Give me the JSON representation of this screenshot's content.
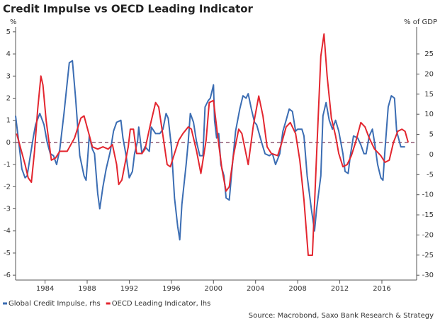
{
  "chart_data": {
    "type": "line",
    "title": "Credit Impulse vs OECD Leading Indicator",
    "y_label": "%",
    "y2_label": "% of GDP",
    "source": "Source: Macrobond, Saxo Bank Research & Strategy",
    "xlim": [
      1981.2,
      2019.3
    ],
    "xticks": [
      1984,
      1988,
      1992,
      1996,
      2000,
      2004,
      2008,
      2012,
      2016
    ],
    "ylim": [
      -6.22,
      5.22
    ],
    "yticks": [
      5,
      4,
      3,
      2,
      1,
      0,
      -1,
      -2,
      -3,
      -4,
      -5,
      -6
    ],
    "y2lim": [
      -31.2,
      31.7
    ],
    "y2ticks": [
      25,
      20,
      15,
      10,
      5,
      0,
      -5,
      -10,
      -15,
      -20,
      -25,
      -30
    ],
    "zero_line": true,
    "legend": "bottom-left",
    "series": [
      {
        "name": "Global Credit Impulse, rhs",
        "color": "#3b6db3",
        "axis": "y2",
        "x": [
          1981.2,
          1981.5,
          1981.8,
          1982.1,
          1982.3,
          1982.6,
          1982.9,
          1983.1,
          1983.5,
          1983.9,
          1984.2,
          1984.5,
          1984.8,
          1985.1,
          1985.4,
          1985.8,
          1986.1,
          1986.3,
          1986.6,
          1986.9,
          1987.3,
          1987.7,
          1987.9,
          1988.2,
          1988.5,
          1988.7,
          1989.0,
          1989.2,
          1989.5,
          1989.8,
          1990.2,
          1990.5,
          1990.8,
          1991.2,
          1991.4,
          1991.7,
          1992.0,
          1992.3,
          1992.5,
          1992.8,
          1992.9,
          1993.2,
          1993.5,
          1993.9,
          1994.1,
          1994.5,
          1994.9,
          1995.2,
          1995.5,
          1995.7,
          1996.0,
          1996.3,
          1996.6,
          1996.8,
          1997.0,
          1997.4,
          1997.6,
          1997.8,
          1998.1,
          1998.4,
          1998.7,
          1999.0,
          1999.2,
          1999.5,
          1999.7,
          2000.0,
          2000.1,
          2000.3,
          2000.5,
          2000.7,
          2001.0,
          2001.2,
          2001.5,
          2001.8,
          2002.1,
          2002.5,
          2002.8,
          2003.1,
          2003.3,
          2003.6,
          2003.9,
          2004.1,
          2004.4,
          2004.7,
          2004.9,
          2005.3,
          2005.6,
          2005.9,
          2006.3,
          2006.6,
          2006.9,
          2007.2,
          2007.5,
          2007.8,
          2008.0,
          2008.4,
          2008.6,
          2008.9,
          2009.3,
          2009.6,
          2009.8,
          2010.2,
          2010.4,
          2010.7,
          2011.0,
          2011.3,
          2011.6,
          2011.9,
          2012.3,
          2012.5,
          2012.8,
          2013.0,
          2013.3,
          2013.7,
          2014.0,
          2014.3,
          2014.5,
          2014.8,
          2015.1,
          2015.3,
          2015.6,
          2015.9,
          2016.1,
          2016.3,
          2016.6,
          2016.9,
          2017.2,
          2017.4,
          2017.8,
          2018.2
        ],
        "values": [
          9.6,
          3,
          -3.6,
          -5.8,
          -5.3,
          -0.3,
          4.6,
          7.4,
          10.2,
          7.4,
          3,
          0.2,
          -0.3,
          -2.5,
          1.3,
          10.2,
          17.8,
          22.8,
          23.3,
          14,
          -0.3,
          -5.3,
          -6.4,
          4.6,
          1.3,
          0.2,
          -9.7,
          -13.5,
          -8,
          -3.6,
          0.8,
          5.8,
          8,
          8.5,
          4.1,
          -0.3,
          -5.8,
          -4.2,
          0.2,
          3.5,
          6.8,
          0.2,
          1.9,
          0.8,
          6.8,
          5.2,
          5.2,
          6.3,
          10.2,
          9,
          1.9,
          -10.8,
          -17.9,
          -21.2,
          -12.4,
          -2.5,
          3,
          10.2,
          8,
          3,
          -0.3,
          -0.3,
          11.8,
          13.4,
          14,
          17.3,
          8.5,
          4.1,
          5.2,
          -2.5,
          -5.3,
          -10.8,
          -11.3,
          -2.5,
          5.8,
          11.3,
          14.6,
          14,
          15.1,
          11.3,
          8,
          7.4,
          4.6,
          1.9,
          0.2,
          -0.3,
          0.2,
          -2.5,
          0.2,
          5.8,
          8.5,
          11.3,
          10.7,
          5.8,
          6.3,
          6.3,
          4.6,
          -5.3,
          -13.5,
          -19,
          -13.5,
          -5.3,
          9.6,
          12.9,
          8.5,
          6.3,
          8.5,
          5.8,
          0.2,
          -4.2,
          -4.7,
          -0.3,
          4.6,
          4.1,
          2.4,
          0.2,
          0.2,
          4.6,
          6.3,
          3,
          -2.5,
          -5.8,
          -6.4,
          1.3,
          11.8,
          14.6,
          14,
          5.8,
          1.9,
          1.9
        ]
      },
      {
        "name": "OECD Leading Indicator, lhs",
        "color": "#e3262f",
        "axis": "y",
        "x": [
          1981.3,
          1982.1,
          1982.4,
          1982.7,
          1983.0,
          1983.3,
          1983.6,
          1983.8,
          1984.1,
          1984.6,
          1985.0,
          1985.4,
          1986.1,
          1986.8,
          1987.4,
          1987.7,
          1988.1,
          1988.5,
          1989.0,
          1989.5,
          1990.0,
          1990.4,
          1990.8,
          1991.0,
          1991.3,
          1991.9,
          1992.1,
          1992.4,
          1992.7,
          1993.2,
          1993.5,
          1994.0,
          1994.5,
          1994.8,
          1995.2,
          1995.6,
          1995.9,
          1996.3,
          1996.7,
          1997.1,
          1997.6,
          1997.9,
          1998.4,
          1998.8,
          1999.3,
          1999.6,
          2000.0,
          2000.4,
          2000.8,
          2001.2,
          2001.5,
          2001.9,
          2002.4,
          2002.7,
          2003.3,
          2003.8,
          2004.3,
          2004.7,
          2005.1,
          2005.5,
          2006.1,
          2006.5,
          2006.9,
          2007.3,
          2007.8,
          2008.2,
          2008.6,
          2009.0,
          2009.4,
          2009.8,
          2010.2,
          2010.5,
          2010.8,
          2011.2,
          2011.6,
          2011.9,
          2012.3,
          2012.7,
          2013.1,
          2013.5,
          2014.0,
          2014.4,
          2014.8,
          2015.3,
          2015.9,
          2016.3,
          2016.7,
          2017.1,
          2017.5,
          2017.9,
          2018.2,
          2018.5
        ],
        "values": [
          0.4,
          -1.0,
          -1.6,
          -1.8,
          -0.4,
          1.5,
          3.0,
          2.6,
          1.0,
          -0.8,
          -0.7,
          -0.4,
          -0.4,
          0.2,
          1.1,
          1.2,
          0.5,
          -0.2,
          -0.3,
          -0.2,
          -0.3,
          -0.1,
          -1.0,
          -1.9,
          -1.7,
          -0.2,
          0.6,
          0.6,
          -0.5,
          -0.5,
          -0.3,
          0.8,
          1.8,
          1.6,
          0.3,
          -1.0,
          -1.1,
          -0.5,
          0.1,
          0.4,
          0.7,
          0.6,
          -0.4,
          -1.4,
          0.1,
          1.8,
          1.9,
          0.3,
          -1.2,
          -2.2,
          -2.0,
          -0.6,
          0.6,
          0.4,
          -1.0,
          0.8,
          2.1,
          1.2,
          -0.2,
          -0.5,
          -0.6,
          0.0,
          0.7,
          0.9,
          0.4,
          -0.8,
          -2.6,
          -5.1,
          -5.1,
          -0.5,
          3.9,
          4.9,
          3.0,
          1.1,
          0.3,
          -0.5,
          -1.1,
          -1.0,
          -0.6,
          0.0,
          0.9,
          0.7,
          0.2,
          -0.3,
          -0.6,
          -0.9,
          -0.8,
          0.0,
          0.5,
          0.6,
          0.5,
          0.0
        ]
      }
    ]
  }
}
